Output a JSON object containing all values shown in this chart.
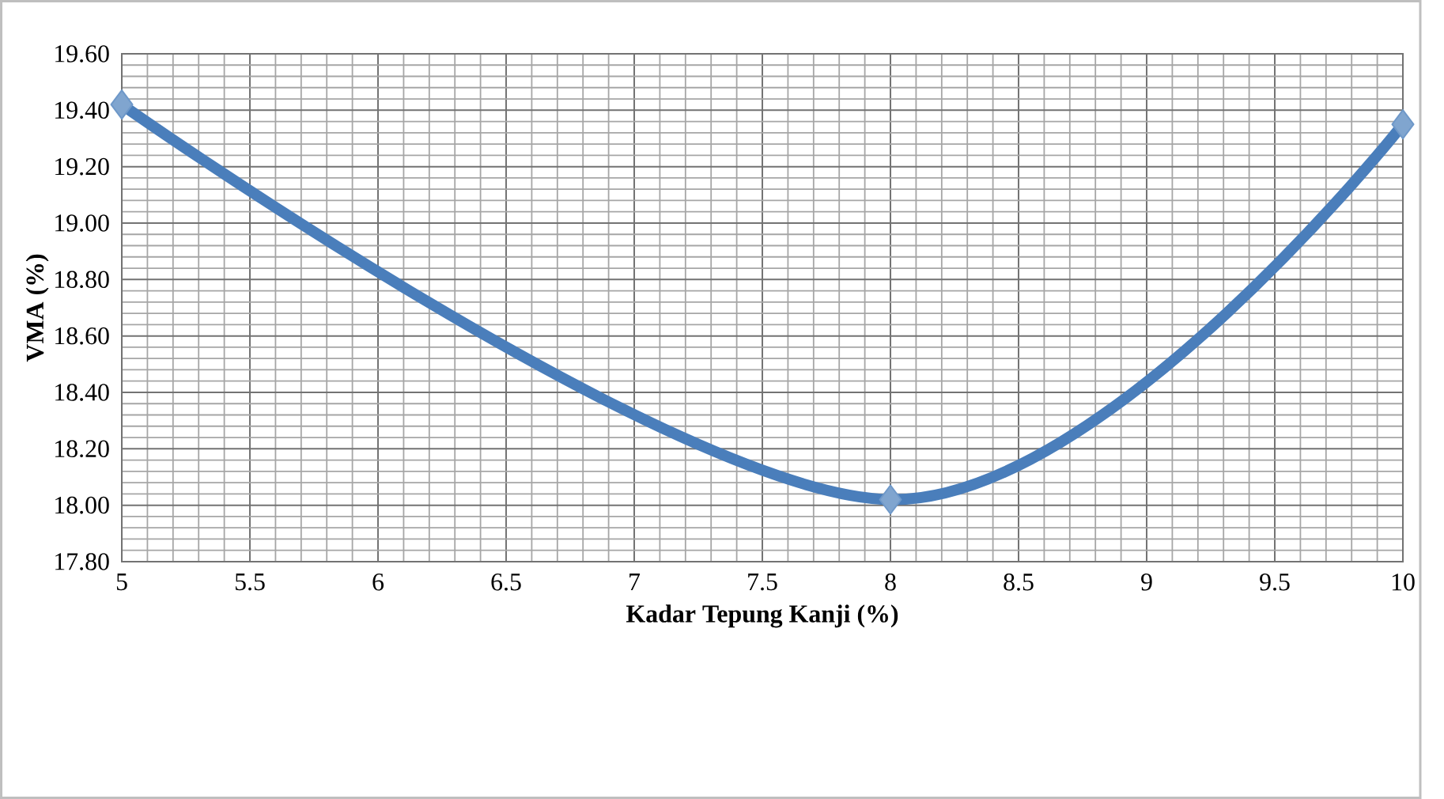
{
  "chart_data": {
    "type": "line",
    "xlabel": "Kadar Tepung Kanji (%)",
    "ylabel": "VMA (%)",
    "x": [
      5,
      8,
      10
    ],
    "series": [
      {
        "color": "#4a7ebb",
        "values": [
          19.42,
          18.02,
          19.35
        ]
      }
    ],
    "xlim": [
      5,
      10
    ],
    "xticks": [
      5,
      5.5,
      6,
      6.5,
      7,
      7.5,
      8,
      8.5,
      9,
      9.5,
      10
    ],
    "ylim": [
      17.8,
      19.6
    ],
    "yticks": [
      {
        "value": 17.8,
        "label": "17.80"
      },
      {
        "value": 18.0,
        "label": "18.00"
      },
      {
        "value": 18.2,
        "label": "18.20"
      },
      {
        "value": 18.4,
        "label": "18.40"
      },
      {
        "value": 18.6,
        "label": "18.60"
      },
      {
        "value": 18.8,
        "label": "18.80"
      },
      {
        "value": 19.0,
        "label": "19.00"
      },
      {
        "value": 19.2,
        "label": "19.20"
      },
      {
        "value": 19.4,
        "label": "19.40"
      },
      {
        "value": 19.6,
        "label": "19.60"
      }
    ],
    "grid": true,
    "marker": "diamond",
    "line_style": "solid"
  }
}
